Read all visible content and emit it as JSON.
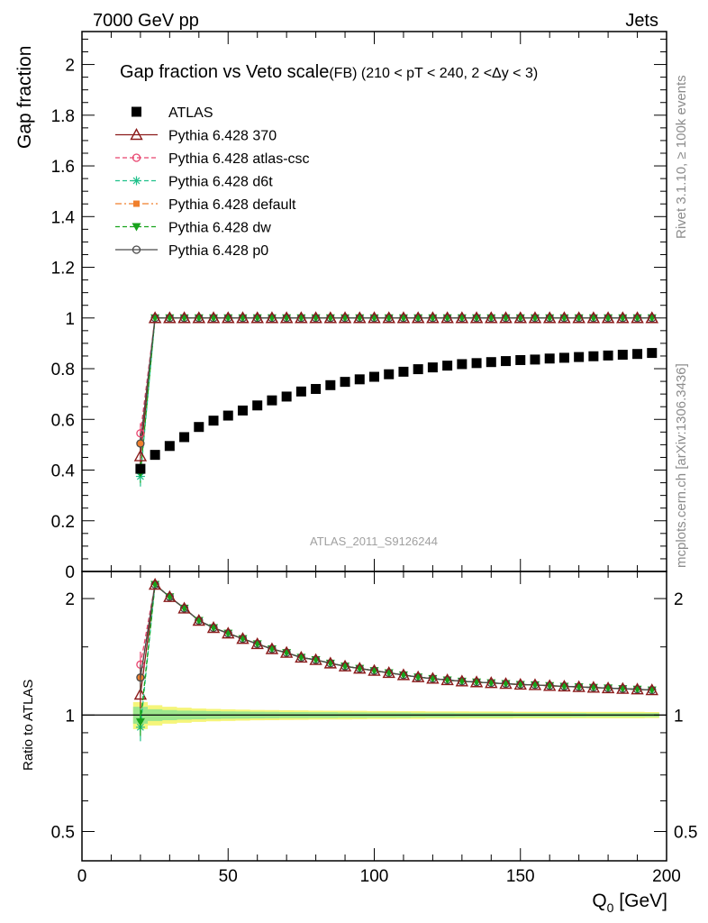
{
  "header": {
    "left": "7000 GeV pp",
    "right": "Jets"
  },
  "side_labels": {
    "rivet": "Rivet 3.1.10, ≥ 100k events",
    "mcplots": "mcplots.cern.ch [arXiv:1306.3436]"
  },
  "chart_data": [
    {
      "type": "scatter",
      "panel": "main",
      "title": "Gap fraction vs Veto scale",
      "subtitle": "(FB) (210 < pT < 240, 2 <Δy < 3)",
      "xlabel": "Q",
      "xlabel_sub": "0",
      "xlabel_unit": " [GeV]",
      "ylabel": "Gap fraction",
      "watermark": "ATLAS_2011_S9126244",
      "xlim": [
        0,
        200
      ],
      "ylim": [
        0,
        2.13
      ],
      "yticks": [
        "0",
        "0.2",
        "0.4",
        "0.6",
        "0.8",
        "1",
        "1.2",
        "1.4",
        "1.6",
        "1.8",
        "2"
      ],
      "ytick_values": [
        0,
        0.2,
        0.4,
        0.6,
        0.8,
        1,
        1.2,
        1.4,
        1.6,
        1.8,
        2
      ],
      "x": [
        20,
        25,
        30,
        35,
        40,
        45,
        50,
        55,
        60,
        65,
        70,
        75,
        80,
        85,
        90,
        95,
        100,
        105,
        110,
        115,
        120,
        125,
        130,
        135,
        140,
        145,
        150,
        155,
        160,
        165,
        170,
        175,
        180,
        185,
        190,
        195
      ],
      "series": [
        {
          "name": "ATLAS",
          "color": "#000000",
          "marker": "square",
          "line": "none",
          "values": [
            0.405,
            0.46,
            0.495,
            0.53,
            0.57,
            0.595,
            0.615,
            0.635,
            0.655,
            0.675,
            0.69,
            0.71,
            0.72,
            0.735,
            0.748,
            0.758,
            0.768,
            0.778,
            0.788,
            0.798,
            0.805,
            0.812,
            0.818,
            0.822,
            0.826,
            0.83,
            0.834,
            0.836,
            0.84,
            0.843,
            0.846,
            0.849,
            0.852,
            0.855,
            0.858,
            0.862
          ]
        },
        {
          "name": "Pythia 6.428 370",
          "color": "#8b1a1a",
          "marker": "triangle-open",
          "line": "solid",
          "first": 0.455,
          "rest": 1.0
        },
        {
          "name": "Pythia 6.428 atlas-csc",
          "color": "#e8436e",
          "marker": "circle-open",
          "line": "dashed",
          "first": 0.545,
          "rest": 1.0
        },
        {
          "name": "Pythia 6.428 d6t",
          "color": "#1fc08a",
          "marker": "star",
          "line": "dashed",
          "first": 0.375,
          "rest": 1.0
        },
        {
          "name": "Pythia 6.428 default",
          "color": "#f07f2c",
          "marker": "square-small",
          "line": "dashdot",
          "first": 0.505,
          "rest": 1.0
        },
        {
          "name": "Pythia 6.428 dw",
          "color": "#17a31c",
          "marker": "triangle-down",
          "line": "dashed",
          "first": 0.39,
          "rest": 1.0
        },
        {
          "name": "Pythia 6.428 p0",
          "color": "#4a4a4a",
          "marker": "circle-open",
          "line": "solid",
          "first": 0.505,
          "rest": 1.0
        }
      ]
    },
    {
      "type": "line",
      "panel": "ratio",
      "ylabel": "Ratio to ATLAS",
      "ylim": [
        0.42,
        2.35
      ],
      "yscale": "log",
      "yticks": [
        "0.5",
        "1",
        "2"
      ],
      "ytick_values": [
        0.5,
        1,
        2
      ],
      "xticks": [
        "0",
        "50",
        "100",
        "150",
        "200"
      ],
      "xtick_values": [
        0,
        50,
        100,
        150,
        200
      ],
      "reference": 1,
      "band_inner": [
        0.05,
        0.035,
        0.03,
        0.027,
        0.025,
        0.023,
        0.022,
        0.021,
        0.02,
        0.019,
        0.018,
        0.018,
        0.017,
        0.017,
        0.016,
        0.016,
        0.015,
        0.015,
        0.015,
        0.014,
        0.014,
        0.014,
        0.013,
        0.013,
        0.013,
        0.013,
        0.012,
        0.012,
        0.012,
        0.012,
        0.012,
        0.011,
        0.011,
        0.011,
        0.011,
        0.011
      ],
      "band_outer": [
        0.08,
        0.06,
        0.05,
        0.045,
        0.04,
        0.037,
        0.035,
        0.033,
        0.031,
        0.03,
        0.029,
        0.028,
        0.027,
        0.026,
        0.026,
        0.025,
        0.024,
        0.024,
        0.023,
        0.023,
        0.022,
        0.022,
        0.022,
        0.021,
        0.021,
        0.021,
        0.02,
        0.02,
        0.02,
        0.02,
        0.019,
        0.019,
        0.019,
        0.019,
        0.019,
        0.018
      ],
      "mc_ratio_first": {
        "Pythia 6.428 370": 1.13,
        "Pythia 6.428 atlas-csc": 1.35,
        "Pythia 6.428 d6t": 0.93,
        "Pythia 6.428 default": 1.25,
        "Pythia 6.428 dw": 0.96,
        "Pythia 6.428 p0": 1.25
      }
    }
  ]
}
